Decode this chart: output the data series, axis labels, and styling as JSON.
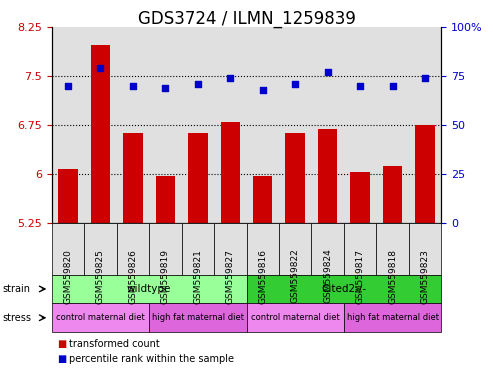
{
  "title": "GDS3724 / ILMN_1259839",
  "samples": [
    "GSM559820",
    "GSM559825",
    "GSM559826",
    "GSM559819",
    "GSM559821",
    "GSM559827",
    "GSM559816",
    "GSM559822",
    "GSM559824",
    "GSM559817",
    "GSM559818",
    "GSM559823"
  ],
  "bar_values": [
    6.07,
    7.97,
    6.63,
    5.96,
    6.62,
    6.8,
    5.96,
    6.63,
    6.68,
    6.03,
    6.12,
    6.75
  ],
  "dot_values": [
    70,
    79,
    70,
    69,
    71,
    74,
    68,
    71,
    77,
    70,
    70,
    74
  ],
  "bar_color": "#cc0000",
  "dot_color": "#0000cc",
  "ylim_left": [
    5.25,
    8.25
  ],
  "ylim_right": [
    0,
    100
  ],
  "yticks_left": [
    5.25,
    6.0,
    6.75,
    7.5,
    8.25
  ],
  "yticks_right": [
    0,
    25,
    50,
    75,
    100
  ],
  "ytick_labels_left": [
    "5.25",
    "6",
    "6.75",
    "7.5",
    "8.25"
  ],
  "ytick_labels_right": [
    "0",
    "25",
    "50",
    "75",
    "100%"
  ],
  "hlines": [
    6.0,
    6.75,
    7.5
  ],
  "strain_labels": [
    {
      "text": "wildtype",
      "start": 0,
      "end": 6,
      "color": "#99ff99"
    },
    {
      "text": "Cited2-/-",
      "start": 6,
      "end": 12,
      "color": "#33cc33"
    }
  ],
  "stress_labels": [
    {
      "text": "control maternal diet",
      "start": 0,
      "end": 3,
      "color": "#ee88ee"
    },
    {
      "text": "high fat maternal diet",
      "start": 3,
      "end": 6,
      "color": "#dd66dd"
    },
    {
      "text": "control maternal diet",
      "start": 6,
      "end": 9,
      "color": "#ee88ee"
    },
    {
      "text": "high fat maternal diet",
      "start": 9,
      "end": 12,
      "color": "#dd66dd"
    }
  ],
  "legend_items": [
    {
      "label": "transformed count",
      "color": "#cc0000"
    },
    {
      "label": "percentile rank within the sample",
      "color": "#0000cc"
    }
  ],
  "left_axis_color": "#cc0000",
  "right_axis_color": "#0000cc",
  "plot_bg_color": "#e0e0e0",
  "title_fontsize": 12,
  "tick_fontsize": 8
}
